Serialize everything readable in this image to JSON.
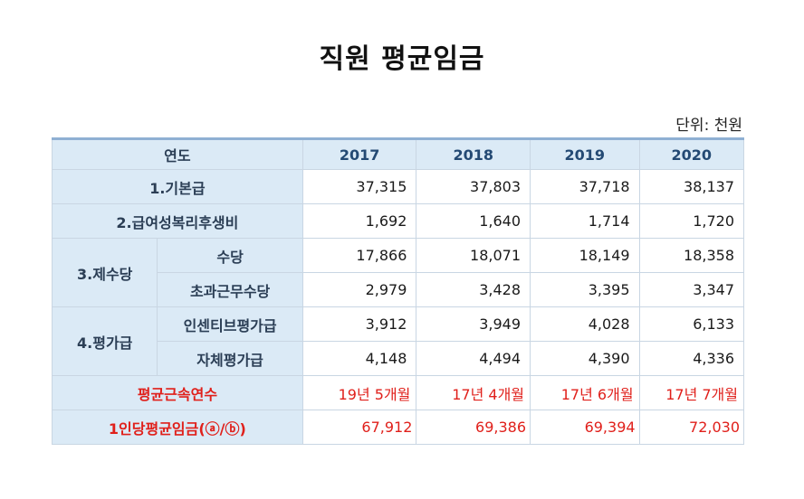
{
  "title": "직원 평균임금",
  "unit": "단위: 천원",
  "table": {
    "header": {
      "label": "연도",
      "years": [
        "2017",
        "2018",
        "2019",
        "2020"
      ]
    },
    "rows": {
      "basic_pay": {
        "label": "1.기본급",
        "values": [
          "37,315",
          "37,803",
          "37,718",
          "38,137"
        ]
      },
      "welfare": {
        "label": "2.급여성복리후생비",
        "values": [
          "1,692",
          "1,640",
          "1,714",
          "1,720"
        ]
      },
      "allowances": {
        "group_label": "3.제수당",
        "allowance": {
          "label": "수당",
          "values": [
            "17,866",
            "18,071",
            "18,149",
            "18,358"
          ]
        },
        "overtime": {
          "label": "초과근무수당",
          "values": [
            "2,979",
            "3,428",
            "3,395",
            "3,347"
          ]
        }
      },
      "performance": {
        "group_label": "4.평가급",
        "incentive": {
          "label": "인센티브평가급",
          "values": [
            "3,912",
            "3,949",
            "4,028",
            "6,133"
          ]
        },
        "self_eval": {
          "label": "자체평가급",
          "values": [
            "4,148",
            "4,494",
            "4,390",
            "4,336"
          ]
        }
      },
      "tenure": {
        "label": "평균근속연수",
        "values": [
          "19년 5개월",
          "17년 4개월",
          "17년 6개월",
          "17년 7개월"
        ]
      },
      "avg_wage": {
        "label": "1인당평균임금(ⓐ/ⓑ)",
        "values": [
          "67,912",
          "69,386",
          "69,394",
          "72,030"
        ]
      }
    }
  },
  "colors": {
    "header_bg": "#dbeaf6",
    "header_text": "#244a74",
    "highlight_red": "#e0201b",
    "border": "#c9d6e3"
  }
}
